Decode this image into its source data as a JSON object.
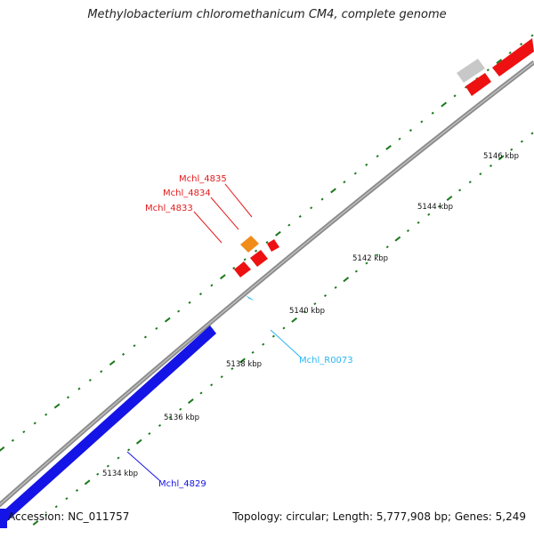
{
  "title": "Methylobacterium chloromethanicum CM4, complete genome",
  "footer": {
    "accession": "Accession: NC_011757",
    "summary": "Topology: circular; Length: 5,777,908 bp; Genes: 5,249"
  },
  "colors": {
    "backbone": "#8a8a8a",
    "tick": "#1e7a1e",
    "gene_forward": "#ee1111",
    "gene_highlight": "#f08c1a",
    "gene_blue": "#1414e6",
    "gene_grey": "#c8c8c8",
    "rna": "#29b6f0"
  },
  "scale_labels": [
    "5134 kbp",
    "5136 kbp",
    "5138 kbp",
    "5140 kbp",
    "5142 kbp",
    "5144 kbp",
    "5146 kbp"
  ],
  "gene_labels": {
    "g4835": "Mchl_4835",
    "g4834": "Mchl_4834",
    "g4833": "Mchl_4833",
    "r0073": "Mchl_R0073",
    "g4829": "Mchl_4829"
  }
}
